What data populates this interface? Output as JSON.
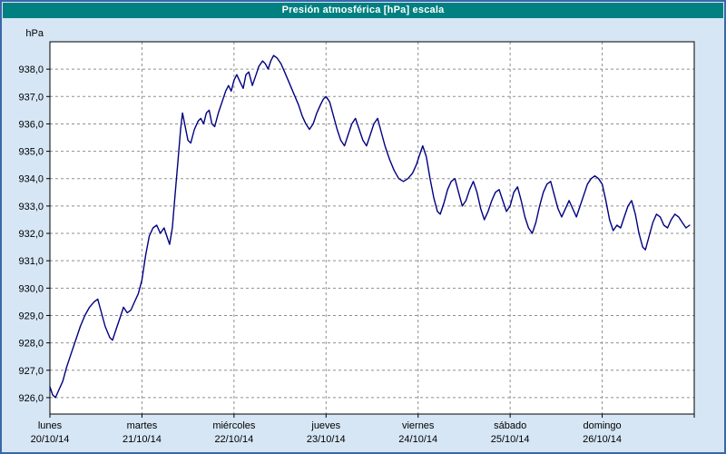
{
  "title_bar": {
    "text": "Presión atmosférica [hPa] escala"
  },
  "colors": {
    "background": "#d6e6f5",
    "frame_border": "#3a67a8",
    "title_bg": "#008080",
    "title_text": "#ffffff",
    "plot_background": "#ffffff",
    "plot_border": "#000000",
    "gridline": "#8f8f8f",
    "axis_text": "#000000",
    "line": "#000080"
  },
  "chart_data": {
    "type": "line",
    "title": "Presión atmosférica [hPa] escala",
    "grid": "dashed",
    "legend": "none",
    "y_axis": {
      "unit": "hPa",
      "min": 925.4,
      "max": 939.0,
      "ticks": [
        926,
        927,
        928,
        929,
        930,
        931,
        932,
        933,
        934,
        935,
        936,
        937,
        938
      ],
      "tick_labels": [
        "926,0",
        "927,0",
        "928,0",
        "929,0",
        "930,0",
        "931,0",
        "932,0",
        "933,0",
        "934,0",
        "935,0",
        "936,0",
        "937,0",
        "938,0"
      ]
    },
    "x_axis": {
      "min": 0,
      "max": 7,
      "day_labels": [
        {
          "name": "lunes",
          "date": "20/10/14"
        },
        {
          "name": "martes",
          "date": "21/10/14"
        },
        {
          "name": "miércoles",
          "date": "22/10/14"
        },
        {
          "name": "jueves",
          "date": "23/10/14"
        },
        {
          "name": "viernes",
          "date": "24/10/14"
        },
        {
          "name": "sábado",
          "date": "25/10/14"
        },
        {
          "name": "domingo",
          "date": "26/10/14"
        }
      ]
    },
    "series": [
      {
        "name": "Presión atmosférica [hPa]",
        "color": "#000080",
        "points": [
          [
            0.0,
            926.4
          ],
          [
            0.03,
            926.1
          ],
          [
            0.06,
            926.0
          ],
          [
            0.1,
            926.3
          ],
          [
            0.14,
            926.6
          ],
          [
            0.18,
            927.1
          ],
          [
            0.23,
            927.6
          ],
          [
            0.28,
            928.1
          ],
          [
            0.33,
            928.6
          ],
          [
            0.38,
            929.0
          ],
          [
            0.43,
            929.3
          ],
          [
            0.48,
            929.5
          ],
          [
            0.52,
            929.6
          ],
          [
            0.56,
            929.1
          ],
          [
            0.6,
            928.6
          ],
          [
            0.65,
            928.2
          ],
          [
            0.68,
            928.1
          ],
          [
            0.72,
            928.5
          ],
          [
            0.76,
            928.9
          ],
          [
            0.8,
            929.3
          ],
          [
            0.84,
            929.1
          ],
          [
            0.88,
            929.2
          ],
          [
            0.92,
            929.5
          ],
          [
            0.96,
            929.8
          ],
          [
            1.0,
            930.3
          ],
          [
            1.04,
            931.2
          ],
          [
            1.08,
            931.9
          ],
          [
            1.12,
            932.2
          ],
          [
            1.16,
            932.3
          ],
          [
            1.2,
            932.0
          ],
          [
            1.24,
            932.2
          ],
          [
            1.27,
            931.9
          ],
          [
            1.3,
            931.6
          ],
          [
            1.33,
            932.2
          ],
          [
            1.36,
            933.4
          ],
          [
            1.39,
            934.6
          ],
          [
            1.42,
            935.8
          ],
          [
            1.44,
            936.4
          ],
          [
            1.47,
            935.9
          ],
          [
            1.5,
            935.4
          ],
          [
            1.53,
            935.3
          ],
          [
            1.57,
            935.8
          ],
          [
            1.61,
            936.1
          ],
          [
            1.64,
            936.2
          ],
          [
            1.67,
            936.0
          ],
          [
            1.7,
            936.4
          ],
          [
            1.73,
            936.5
          ],
          [
            1.76,
            936.0
          ],
          [
            1.79,
            935.9
          ],
          [
            1.83,
            936.4
          ],
          [
            1.87,
            936.8
          ],
          [
            1.91,
            937.2
          ],
          [
            1.94,
            937.4
          ],
          [
            1.97,
            937.2
          ],
          [
            2.0,
            937.6
          ],
          [
            2.03,
            937.8
          ],
          [
            2.07,
            937.5
          ],
          [
            2.1,
            937.3
          ],
          [
            2.13,
            937.8
          ],
          [
            2.16,
            937.9
          ],
          [
            2.2,
            937.4
          ],
          [
            2.24,
            937.8
          ],
          [
            2.27,
            938.1
          ],
          [
            2.31,
            938.3
          ],
          [
            2.34,
            938.2
          ],
          [
            2.37,
            938.0
          ],
          [
            2.4,
            938.3
          ],
          [
            2.43,
            938.5
          ],
          [
            2.47,
            938.4
          ],
          [
            2.51,
            938.2
          ],
          [
            2.55,
            937.9
          ],
          [
            2.6,
            937.5
          ],
          [
            2.65,
            937.1
          ],
          [
            2.7,
            936.7
          ],
          [
            2.74,
            936.3
          ],
          [
            2.78,
            936.0
          ],
          [
            2.82,
            935.8
          ],
          [
            2.86,
            936.0
          ],
          [
            2.9,
            936.4
          ],
          [
            2.94,
            936.7
          ],
          [
            2.97,
            936.9
          ],
          [
            3.0,
            937.0
          ],
          [
            3.04,
            936.8
          ],
          [
            3.08,
            936.3
          ],
          [
            3.12,
            935.8
          ],
          [
            3.16,
            935.4
          ],
          [
            3.2,
            935.2
          ],
          [
            3.24,
            935.6
          ],
          [
            3.28,
            936.0
          ],
          [
            3.32,
            936.2
          ],
          [
            3.36,
            935.8
          ],
          [
            3.4,
            935.4
          ],
          [
            3.44,
            935.2
          ],
          [
            3.48,
            935.6
          ],
          [
            3.52,
            936.0
          ],
          [
            3.56,
            936.2
          ],
          [
            3.6,
            935.7
          ],
          [
            3.64,
            935.2
          ],
          [
            3.69,
            934.7
          ],
          [
            3.74,
            934.3
          ],
          [
            3.79,
            934.0
          ],
          [
            3.84,
            933.9
          ],
          [
            3.89,
            934.0
          ],
          [
            3.94,
            934.2
          ],
          [
            3.98,
            934.5
          ],
          [
            4.02,
            934.9
          ],
          [
            4.05,
            935.2
          ],
          [
            4.09,
            934.8
          ],
          [
            4.13,
            934.0
          ],
          [
            4.17,
            933.3
          ],
          [
            4.21,
            932.8
          ],
          [
            4.24,
            932.7
          ],
          [
            4.28,
            933.1
          ],
          [
            4.32,
            933.6
          ],
          [
            4.36,
            933.9
          ],
          [
            4.4,
            934.0
          ],
          [
            4.44,
            933.5
          ],
          [
            4.48,
            933.0
          ],
          [
            4.52,
            933.2
          ],
          [
            4.56,
            933.6
          ],
          [
            4.6,
            933.9
          ],
          [
            4.64,
            933.5
          ],
          [
            4.68,
            932.9
          ],
          [
            4.72,
            932.5
          ],
          [
            4.76,
            932.8
          ],
          [
            4.8,
            933.2
          ],
          [
            4.84,
            933.5
          ],
          [
            4.88,
            933.6
          ],
          [
            4.92,
            933.2
          ],
          [
            4.96,
            932.8
          ],
          [
            5.0,
            933.0
          ],
          [
            5.04,
            933.5
          ],
          [
            5.08,
            933.7
          ],
          [
            5.12,
            933.2
          ],
          [
            5.16,
            932.6
          ],
          [
            5.2,
            932.2
          ],
          [
            5.24,
            932.0
          ],
          [
            5.28,
            932.4
          ],
          [
            5.32,
            933.0
          ],
          [
            5.36,
            933.5
          ],
          [
            5.4,
            933.8
          ],
          [
            5.44,
            933.9
          ],
          [
            5.48,
            933.4
          ],
          [
            5.52,
            932.9
          ],
          [
            5.56,
            932.6
          ],
          [
            5.6,
            932.9
          ],
          [
            5.64,
            933.2
          ],
          [
            5.68,
            932.9
          ],
          [
            5.72,
            932.6
          ],
          [
            5.76,
            933.0
          ],
          [
            5.8,
            933.4
          ],
          [
            5.84,
            933.8
          ],
          [
            5.88,
            934.0
          ],
          [
            5.92,
            934.1
          ],
          [
            5.96,
            934.0
          ],
          [
            6.0,
            933.8
          ],
          [
            6.04,
            933.2
          ],
          [
            6.08,
            932.5
          ],
          [
            6.12,
            932.1
          ],
          [
            6.16,
            932.3
          ],
          [
            6.2,
            932.2
          ],
          [
            6.24,
            932.6
          ],
          [
            6.28,
            933.0
          ],
          [
            6.32,
            933.2
          ],
          [
            6.36,
            932.7
          ],
          [
            6.4,
            932.0
          ],
          [
            6.44,
            931.5
          ],
          [
            6.47,
            931.4
          ],
          [
            6.51,
            931.9
          ],
          [
            6.55,
            932.4
          ],
          [
            6.59,
            932.7
          ],
          [
            6.63,
            932.6
          ],
          [
            6.67,
            932.3
          ],
          [
            6.71,
            932.2
          ],
          [
            6.75,
            932.5
          ],
          [
            6.79,
            932.7
          ],
          [
            6.83,
            932.6
          ],
          [
            6.87,
            932.4
          ],
          [
            6.91,
            932.2
          ],
          [
            6.95,
            932.3
          ]
        ]
      }
    ]
  }
}
